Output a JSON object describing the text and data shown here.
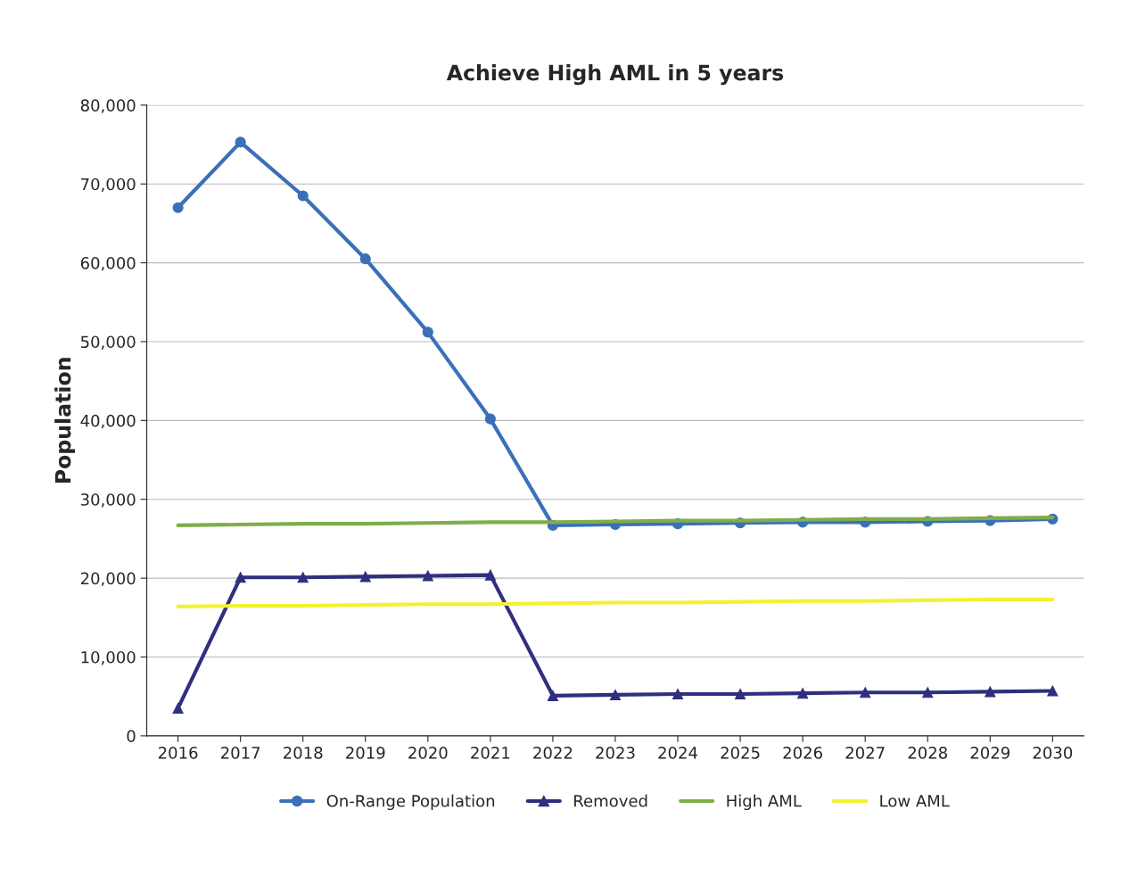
{
  "chart_data": {
    "type": "line",
    "title": "Achieve High AML in 5 years",
    "ylabel": "Population",
    "categories": [
      "2016",
      "2017",
      "2018",
      "2019",
      "2020",
      "2021",
      "2022",
      "2023",
      "2024",
      "2025",
      "2026",
      "2027",
      "2028",
      "2029",
      "2030"
    ],
    "series": [
      {
        "name": "On-Range Population",
        "color": "#3a70b8",
        "marker": "circle",
        "values": [
          67000,
          75300,
          68500,
          60500,
          51200,
          40200,
          26700,
          26800,
          26900,
          27000,
          27100,
          27100,
          27200,
          27300,
          27500
        ]
      },
      {
        "name": "Removed",
        "color": "#2e2f7e",
        "marker": "triangle",
        "values": [
          3500,
          20100,
          20100,
          20200,
          20300,
          20400,
          5100,
          5200,
          5300,
          5300,
          5400,
          5500,
          5500,
          5600,
          5700
        ]
      },
      {
        "name": "High AML",
        "color": "#7fae4a",
        "marker": "none",
        "values": [
          26700,
          26800,
          26900,
          26900,
          27000,
          27100,
          27100,
          27200,
          27300,
          27300,
          27400,
          27500,
          27500,
          27600,
          27700
        ]
      },
      {
        "name": "Low AML",
        "color": "#f2f230",
        "marker": "none",
        "values": [
          16400,
          16500,
          16500,
          16600,
          16700,
          16700,
          16800,
          16900,
          16900,
          17000,
          17100,
          17100,
          17200,
          17300,
          17300
        ]
      }
    ],
    "ylim": [
      0,
      80000
    ],
    "yticks": [
      {
        "value": 0,
        "label": "0"
      },
      {
        "value": 10000,
        "label": "10,000"
      },
      {
        "value": 20000,
        "label": "20,000"
      },
      {
        "value": 30000,
        "label": "30,000"
      },
      {
        "value": 40000,
        "label": "40,000"
      },
      {
        "value": 50000,
        "label": "50,000"
      },
      {
        "value": 60000,
        "label": "60,000"
      },
      {
        "value": 70000,
        "label": "70,000"
      },
      {
        "value": 80000,
        "label": "80,000"
      }
    ],
    "grid": "y",
    "legend": "bottom",
    "line_style": "solid"
  }
}
